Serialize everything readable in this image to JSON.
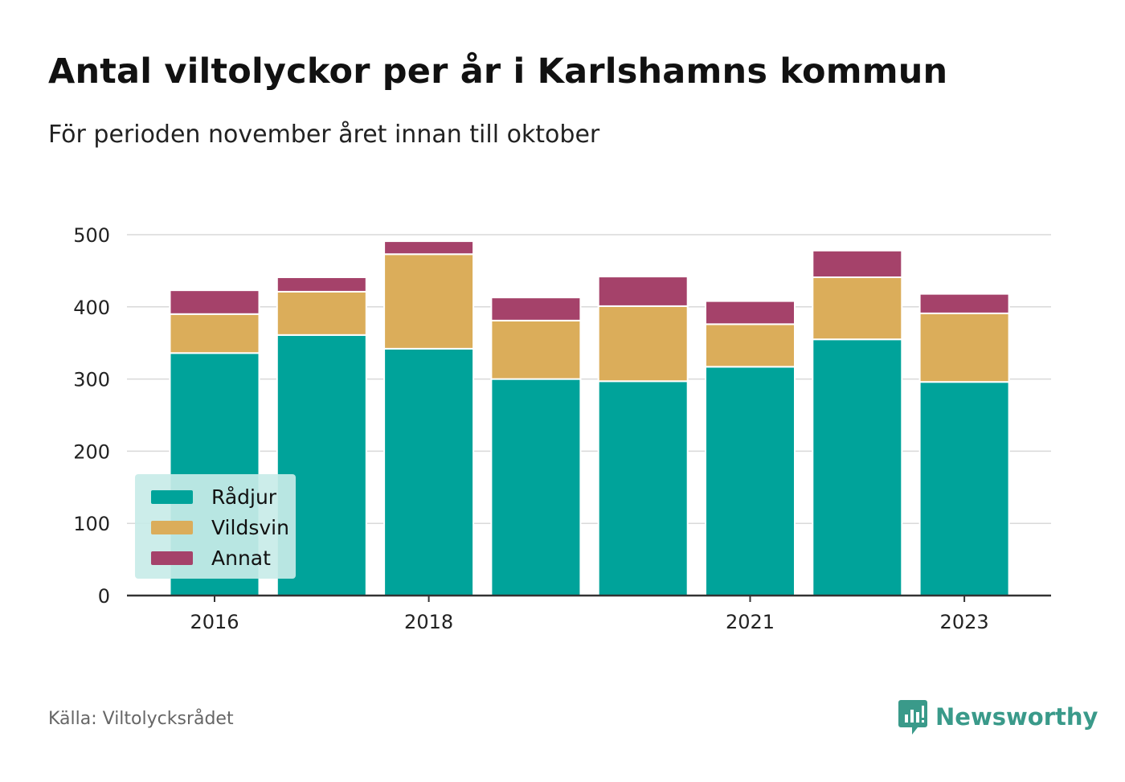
{
  "title": "Antal viltolyckor per år i Karlshamns kommun",
  "subtitle": "För perioden november året innan till oktober",
  "source": "Källa: Viltolycksrådet",
  "brand": "Newsworthy",
  "colors": {
    "radjur": "#00a39a",
    "vildsvin": "#dbad5a",
    "annat": "#a5426a",
    "grid": "#d9d9d9",
    "axis": "#333333",
    "brand": "#3a9a8a"
  },
  "chart_data": {
    "type": "bar",
    "stacked": true,
    "categories": [
      "2016",
      "2017",
      "2018",
      "2019",
      "2020",
      "2021",
      "2022",
      "2023"
    ],
    "tick_labels": [
      "2016",
      "",
      "2018",
      "",
      "",
      "2021",
      "",
      "2023"
    ],
    "series": [
      {
        "name": "Rådjur",
        "color": "#00a39a",
        "values": [
          336,
          361,
          342,
          300,
          297,
          317,
          355,
          296
        ]
      },
      {
        "name": "Vildsvin",
        "color": "#dbad5a",
        "values": [
          54,
          60,
          131,
          81,
          104,
          59,
          86,
          95
        ]
      },
      {
        "name": "Annat",
        "color": "#a5426a",
        "values": [
          33,
          20,
          18,
          32,
          41,
          32,
          37,
          27
        ]
      }
    ],
    "yticks": [
      0,
      100,
      200,
      300,
      400,
      500
    ],
    "ylim": [
      0,
      500
    ],
    "grid": true,
    "legend_position": "bottom-left"
  }
}
